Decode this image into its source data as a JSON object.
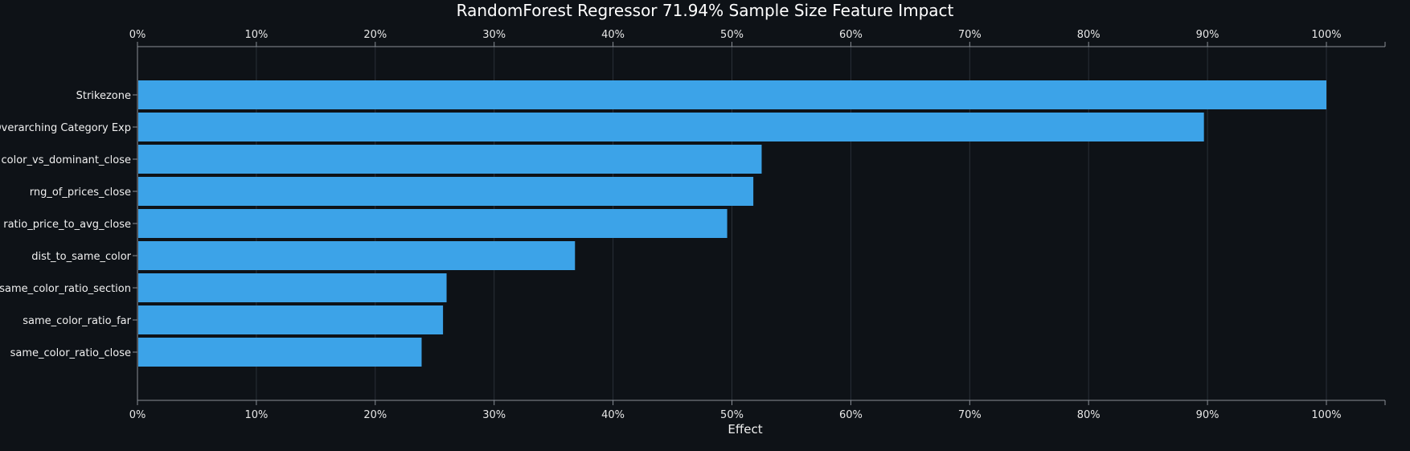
{
  "chart_data": {
    "type": "bar",
    "orientation": "horizontal",
    "title": "RandomForest Regressor 71.94% Sample Size Feature Impact",
    "xlabel": "Effect",
    "ylabel": "",
    "xlim": [
      0,
      105
    ],
    "x_ticks": [
      "0%",
      "10%",
      "20%",
      "30%",
      "40%",
      "50%",
      "60%",
      "70%",
      "80%",
      "90%",
      "100%"
    ],
    "tick_values": [
      0,
      10,
      20,
      30,
      40,
      50,
      60,
      70,
      80,
      90,
      100
    ],
    "categories": [
      "Strikezone",
      "Overarching Category Exp",
      "color_vs_dominant_close",
      "rng_of_prices_close",
      "ratio_price_to_avg_close",
      "dist_to_same_color",
      "same_color_ratio_section",
      "same_color_ratio_far",
      "same_color_ratio_close"
    ],
    "values": [
      100,
      89.7,
      52.5,
      51.8,
      49.6,
      36.8,
      26.0,
      25.7,
      23.9
    ],
    "grid": true,
    "bar_color": "#3ca3e8",
    "background": "#0e1217"
  }
}
